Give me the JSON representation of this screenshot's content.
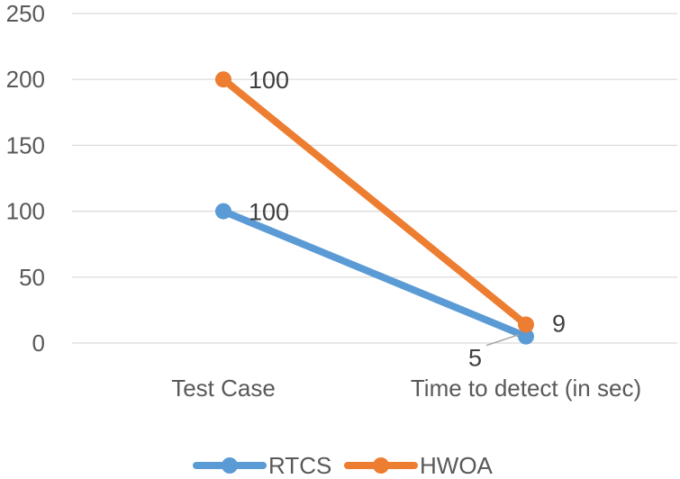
{
  "chart_data": {
    "type": "line",
    "title": "",
    "xlabel": "",
    "ylabel": "",
    "categories": [
      "Test Case",
      "Time to detect (in sec)"
    ],
    "ylim": [
      0,
      250
    ],
    "yticks": [
      0,
      50,
      100,
      150,
      200,
      250
    ],
    "grid": true,
    "legend_position": "bottom",
    "stacked": true,
    "series": [
      {
        "name": "RTCS",
        "color": "#5b9bd5",
        "values": [
          100,
          5
        ],
        "data_labels": [
          "100",
          "5"
        ]
      },
      {
        "name": "HWOA",
        "color": "#ed7d31",
        "values": [
          100,
          9
        ],
        "data_labels": [
          "100",
          "9"
        ]
      }
    ]
  }
}
